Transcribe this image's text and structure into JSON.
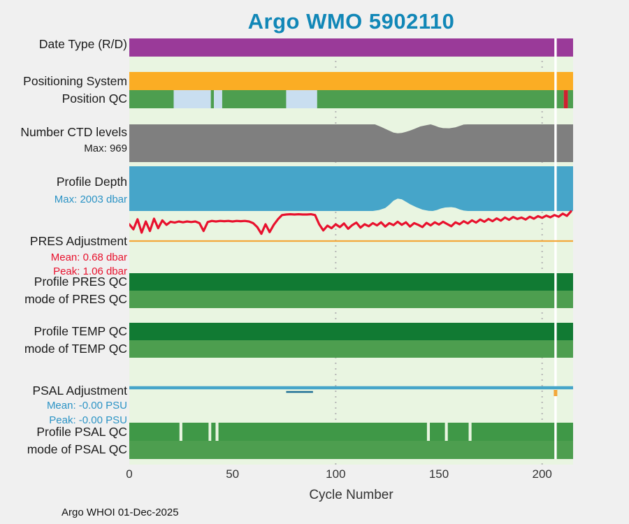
{
  "title": "Argo WMO 5902110",
  "footer_text": "Argo WHOI 01-Dec-2025",
  "colors": {
    "title": "#1187b7",
    "page_bg": "#f0f0f0",
    "plot_bg": "#e9f5e1",
    "label_text": "#1a1a1a",
    "axis_text": "#333333"
  },
  "chart_data": {
    "type": "multi-band-status",
    "title": "Argo WMO 5902110",
    "xlabel": "Cycle Number",
    "x_range": [
      0,
      215
    ],
    "x_ticks": [
      0,
      50,
      100,
      150,
      200
    ],
    "gridlines_x": [
      100,
      200
    ],
    "grid": "dotted-vertical",
    "grid_color": "#b5b5b5",
    "background": "#e9f5e1",
    "event_line": {
      "x": 206.5,
      "color": "#ffffff"
    },
    "rows": [
      {
        "id": "date_type",
        "label": "Date Type (R/D)",
        "kind": "band",
        "segments": [
          {
            "x0": 0,
            "x1": 215,
            "color": "#9a3a99"
          }
        ]
      },
      {
        "id": "positioning_system",
        "label": "Positioning System",
        "kind": "band",
        "segments": [
          {
            "x0": 0,
            "x1": 215,
            "color": "#fbad24"
          }
        ]
      },
      {
        "id": "position_qc",
        "label": "Position QC",
        "kind": "band",
        "segments": [
          {
            "x0": 0,
            "x1": 21.5,
            "color": "#4d9e4f"
          },
          {
            "x0": 21.5,
            "x1": 39.5,
            "color": "#c9def0"
          },
          {
            "x0": 39.5,
            "x1": 41,
            "color": "#4d9e4f"
          },
          {
            "x0": 41,
            "x1": 45,
            "color": "#c9def0"
          },
          {
            "x0": 45,
            "x1": 76,
            "color": "#4d9e4f"
          },
          {
            "x0": 76,
            "x1": 91,
            "color": "#c9def0"
          },
          {
            "x0": 91,
            "x1": 210.5,
            "color": "#4d9e4f"
          },
          {
            "x0": 210.5,
            "x1": 212.5,
            "color": "#cf2030"
          },
          {
            "x0": 212.5,
            "x1": 215,
            "color": "#4d9e4f"
          }
        ]
      },
      {
        "id": "ctd_levels",
        "label": "Number CTD levels",
        "sublabel": "Max: 969",
        "sublabel_color": "#1a1a1a",
        "kind": "area-top",
        "color": "#7f7f7f",
        "max": 969,
        "points": [
          [
            0,
            969
          ],
          [
            119,
            969
          ],
          [
            122,
            905
          ],
          [
            125,
            830
          ],
          [
            128,
            757
          ],
          [
            130,
            742
          ],
          [
            132,
            748
          ],
          [
            134,
            775
          ],
          [
            136,
            810
          ],
          [
            138,
            850
          ],
          [
            141,
            915
          ],
          [
            144,
            950
          ],
          [
            146,
            969
          ],
          [
            148,
            935
          ],
          [
            150,
            895
          ],
          [
            152,
            872
          ],
          [
            155,
            868
          ],
          [
            158,
            893
          ],
          [
            160,
            930
          ],
          [
            162,
            965
          ],
          [
            164,
            969
          ],
          [
            215,
            969
          ]
        ]
      },
      {
        "id": "profile_depth",
        "label": "Profile Depth",
        "sublabel": "Max: 2003 dbar",
        "sublabel_color": "#2b93c5",
        "kind": "area-bottom",
        "color": "#46a5c9",
        "max": 2003,
        "points": [
          [
            0,
            2003
          ],
          [
            118,
            2003
          ],
          [
            121,
            1960
          ],
          [
            124,
            1870
          ],
          [
            126,
            1720
          ],
          [
            128,
            1540
          ],
          [
            130,
            1445
          ],
          [
            132,
            1480
          ],
          [
            134,
            1590
          ],
          [
            136,
            1700
          ],
          [
            139,
            1830
          ],
          [
            142,
            1940
          ],
          [
            145,
            1995
          ],
          [
            147,
            2003
          ],
          [
            149,
            1960
          ],
          [
            151,
            1890
          ],
          [
            153,
            1845
          ],
          [
            156,
            1830
          ],
          [
            158,
            1860
          ],
          [
            160,
            1930
          ],
          [
            162,
            1985
          ],
          [
            164,
            2003
          ],
          [
            215,
            2003
          ]
        ]
      },
      {
        "id": "pres_adjustment",
        "label": "PRES Adjustment",
        "mean_label": "Mean: 0.68 dbar",
        "peak_label": "Peak: 1.06 dbar",
        "stats_color": "#e8112d",
        "kind": "line",
        "unit": "dbar",
        "line_color": "#e8112d",
        "zero_line_color": "#f3a83b",
        "x_step": 2,
        "values": [
          0.6,
          0.42,
          0.78,
          0.3,
          0.7,
          0.36,
          0.8,
          0.46,
          0.74,
          0.58,
          0.69,
          0.66,
          0.7,
          0.67,
          0.7,
          0.68,
          0.7,
          0.64,
          0.36,
          0.68,
          0.72,
          0.7,
          0.72,
          0.71,
          0.72,
          0.7,
          0.72,
          0.71,
          0.72,
          0.7,
          0.64,
          0.5,
          0.26,
          0.6,
          0.32,
          0.58,
          0.78,
          0.93,
          0.95,
          0.96,
          0.95,
          0.96,
          0.95,
          0.95,
          0.96,
          0.93,
          0.6,
          0.38,
          0.55,
          0.46,
          0.6,
          0.5,
          0.63,
          0.44,
          0.57,
          0.66,
          0.48,
          0.6,
          0.53,
          0.64,
          0.56,
          0.67,
          0.52,
          0.64,
          0.57,
          0.69,
          0.58,
          0.67,
          0.52,
          0.64,
          0.58,
          0.5,
          0.65,
          0.56,
          0.67,
          0.59,
          0.69,
          0.61,
          0.53,
          0.67,
          0.6,
          0.71,
          0.63,
          0.74,
          0.66,
          0.77,
          0.69,
          0.79,
          0.71,
          0.81,
          0.73,
          0.84,
          0.76,
          0.86,
          0.79,
          0.84,
          0.77,
          0.87,
          0.8,
          0.89,
          0.83,
          0.91,
          0.85,
          0.93,
          0.87,
          0.98,
          0.9,
          1.06
        ]
      },
      {
        "id": "profile_pres_qc",
        "label": "Profile PRES QC",
        "kind": "band",
        "segments": [
          {
            "x0": 0,
            "x1": 215,
            "color": "#117a33"
          }
        ]
      },
      {
        "id": "mode_pres_qc",
        "label": "mode of PRES QC",
        "kind": "band",
        "segments": [
          {
            "x0": 0,
            "x1": 215,
            "color": "#4d9e4f"
          }
        ]
      },
      {
        "id": "profile_temp_qc",
        "label": "Profile TEMP QC",
        "kind": "band",
        "segments": [
          {
            "x0": 0,
            "x1": 215,
            "color": "#117a33"
          }
        ]
      },
      {
        "id": "mode_temp_qc",
        "label": "mode of TEMP QC",
        "kind": "band",
        "segments": [
          {
            "x0": 0,
            "x1": 215,
            "color": "#4d9e4f"
          }
        ]
      },
      {
        "id": "psal_adjustment",
        "label": "PSAL Adjustment",
        "mean_label": "Mean: -0.00 PSU",
        "peak_label": "Peak: -0.00 PSU",
        "stats_color": "#2b93c5",
        "kind": "flat-line",
        "unit": "PSU",
        "line_color": "#46a5c9",
        "dip": {
          "x0": 76,
          "x1": 89,
          "color": "#1c6e94"
        },
        "marker": {
          "x": 206.5,
          "color": "#f3a83b"
        }
      },
      {
        "id": "profile_psal_qc",
        "label": "Profile PSAL QC",
        "kind": "band",
        "segments": [
          {
            "x0": 0,
            "x1": 24.3,
            "color": "#3f9847"
          },
          {
            "x0": 25.7,
            "x1": 38.4,
            "color": "#3f9847"
          },
          {
            "x0": 39.7,
            "x1": 41.8,
            "color": "#3f9847"
          },
          {
            "x0": 43.2,
            "x1": 144.2,
            "color": "#3f9847"
          },
          {
            "x0": 145.6,
            "x1": 152.9,
            "color": "#3f9847"
          },
          {
            "x0": 154.3,
            "x1": 164.4,
            "color": "#3f9847"
          },
          {
            "x0": 165.8,
            "x1": 215,
            "color": "#3f9847"
          }
        ]
      },
      {
        "id": "mode_psal_qc",
        "label": "mode of PSAL QC",
        "kind": "band",
        "segments": [
          {
            "x0": 0,
            "x1": 215,
            "color": "#4d9e4f"
          }
        ]
      }
    ]
  }
}
